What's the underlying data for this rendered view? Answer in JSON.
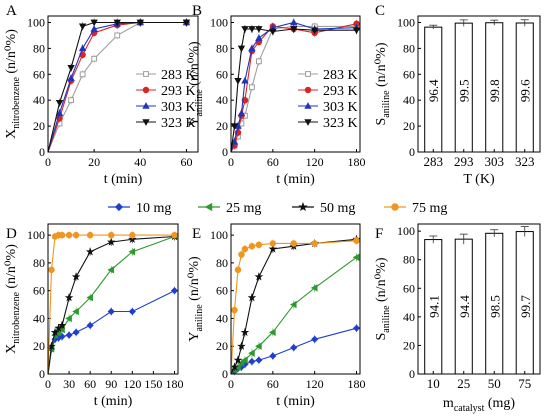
{
  "chart_data": [
    {
      "id": "A",
      "panel_label": "A",
      "type": "line",
      "xlabel": "t (min)",
      "ylabel_main": "X",
      "ylabel_sub": "nitrobenzene",
      "ylabel_tail": " (n/n⁰%)",
      "xlim": [
        0,
        65
      ],
      "ylim": [
        0,
        105
      ],
      "xticks": [
        0,
        20,
        40,
        60
      ],
      "yticks": [
        0,
        20,
        40,
        60,
        80,
        100
      ],
      "legend_position": "inside-right",
      "series": [
        {
          "name": "283 K",
          "color": "#9e9e9e",
          "marker": "square",
          "x": [
            0,
            5,
            10,
            15,
            20,
            30,
            40,
            60
          ],
          "y": [
            0,
            22,
            40,
            60,
            72,
            90,
            100,
            100
          ]
        },
        {
          "name": "293 K",
          "color": "#d62728",
          "marker": "circle",
          "x": [
            0,
            5,
            10,
            15,
            20,
            30,
            40,
            60
          ],
          "y": [
            0,
            26,
            55,
            75,
            92,
            98,
            100,
            100
          ]
        },
        {
          "name": "303 K",
          "color": "#2233bb",
          "marker": "triangle",
          "x": [
            0,
            5,
            10,
            15,
            20,
            30,
            40,
            60
          ],
          "y": [
            0,
            30,
            57,
            80,
            95,
            99,
            100,
            100
          ]
        },
        {
          "name": "323 K",
          "color": "#111111",
          "marker": "triangle-down",
          "x": [
            0,
            5,
            10,
            15,
            20,
            30,
            40,
            60
          ],
          "y": [
            0,
            38,
            65,
            97,
            100,
            100,
            100,
            100
          ]
        }
      ]
    },
    {
      "id": "B",
      "panel_label": "B",
      "type": "line",
      "xlabel": "t (min)",
      "ylabel_main": "Y",
      "ylabel_sub": "aniline",
      "ylabel_tail": " (n/n⁰%)",
      "xlim": [
        0,
        185
      ],
      "ylim": [
        0,
        105
      ],
      "xticks": [
        0,
        60,
        120,
        180
      ],
      "yticks": [
        0,
        20,
        40,
        60,
        80,
        100
      ],
      "legend_position": "inside-right",
      "series": [
        {
          "name": "283 K",
          "color": "#9e9e9e",
          "marker": "square",
          "x": [
            0,
            5,
            10,
            15,
            20,
            30,
            40,
            60,
            90,
            120,
            180
          ],
          "y": [
            0,
            5,
            12,
            22,
            28,
            50,
            70,
            95,
            97,
            97,
            97
          ]
        },
        {
          "name": "293 K",
          "color": "#d62728",
          "marker": "circle",
          "x": [
            0,
            5,
            10,
            15,
            20,
            30,
            40,
            60,
            90,
            120,
            180
          ],
          "y": [
            0,
            5,
            15,
            28,
            40,
            78,
            85,
            97,
            95,
            92,
            99
          ]
        },
        {
          "name": "303 K",
          "color": "#2233bb",
          "marker": "triangle",
          "x": [
            0,
            5,
            10,
            15,
            20,
            30,
            40,
            60,
            90,
            120,
            180
          ],
          "y": [
            0,
            8,
            20,
            30,
            55,
            80,
            88,
            96,
            100,
            95,
            96
          ]
        },
        {
          "name": "323 K",
          "color": "#111111",
          "marker": "triangle-down",
          "x": [
            0,
            5,
            10,
            15,
            20,
            30,
            40,
            60,
            90,
            120,
            180
          ],
          "y": [
            0,
            20,
            55,
            80,
            95,
            95,
            95,
            93,
            95,
            94,
            94
          ]
        }
      ]
    },
    {
      "id": "C",
      "panel_label": "C",
      "type": "bar",
      "xlabel": "T (K)",
      "ylabel_main": "S",
      "ylabel_sub": "aniline",
      "ylabel_tail": " (n/n⁰%)",
      "ylim": [
        0,
        105
      ],
      "yticks": [
        0,
        20,
        40,
        60,
        80,
        100
      ],
      "categories": [
        "283",
        "293",
        "303",
        "323"
      ],
      "values": [
        96.4,
        99.5,
        99.8,
        99.6
      ],
      "errors": [
        1.5,
        2.5,
        2,
        2.5
      ],
      "data_labels": [
        "96.4",
        "99.5",
        "99.8",
        "99.6"
      ]
    },
    {
      "id": "D",
      "panel_label": "D",
      "type": "line",
      "xlabel": "t (min)",
      "ylabel_main": "X",
      "ylabel_sub": "nitrobenzene",
      "ylabel_tail": " (n/n⁰%)",
      "xlim": [
        0,
        185
      ],
      "ylim": [
        0,
        108
      ],
      "xticks": [
        0,
        30,
        60,
        90,
        120,
        150,
        180
      ],
      "yticks": [
        0,
        20,
        40,
        60,
        80,
        100
      ],
      "series": [
        {
          "name": "10 mg",
          "color": "#1f3fd0",
          "marker": "diamond",
          "x": [
            0,
            5,
            10,
            15,
            20,
            30,
            40,
            60,
            90,
            120,
            180
          ],
          "y": [
            0,
            18,
            25,
            26,
            27,
            28,
            30,
            35,
            45,
            45,
            60
          ]
        },
        {
          "name": "25 mg",
          "color": "#2e9a2e",
          "marker": "triangle-left",
          "x": [
            0,
            5,
            10,
            15,
            20,
            30,
            40,
            60,
            90,
            120,
            180
          ],
          "y": [
            0,
            18,
            28,
            30,
            32,
            40,
            45,
            55,
            75,
            88,
            99
          ]
        },
        {
          "name": "50 mg",
          "color": "#111111",
          "marker": "star",
          "x": [
            0,
            5,
            10,
            15,
            20,
            30,
            40,
            60,
            90,
            120,
            180
          ],
          "y": [
            0,
            20,
            30,
            33,
            35,
            55,
            70,
            88,
            95,
            97,
            99
          ]
        },
        {
          "name": "75 mg",
          "color": "#f0961e",
          "marker": "circle",
          "x": [
            0,
            5,
            10,
            15,
            20,
            30,
            40,
            60,
            90,
            120,
            180
          ],
          "y": [
            0,
            75,
            99,
            100,
            100,
            100,
            100,
            100,
            100,
            100,
            100
          ]
        }
      ]
    },
    {
      "id": "E",
      "panel_label": "E",
      "type": "line",
      "xlabel": "t (min)",
      "ylabel_main": "Y",
      "ylabel_sub": "aniline",
      "ylabel_tail": " (n/n⁰%)",
      "xlim": [
        0,
        185
      ],
      "ylim": [
        0,
        108
      ],
      "xticks": [
        0,
        60,
        120,
        180
      ],
      "yticks": [
        0,
        20,
        40,
        60,
        80,
        100
      ],
      "series": [
        {
          "name": "10 mg",
          "color": "#1f3fd0",
          "marker": "diamond",
          "x": [
            0,
            5,
            10,
            15,
            20,
            30,
            40,
            60,
            90,
            120,
            180
          ],
          "y": [
            0,
            2,
            4,
            5,
            7,
            9,
            10,
            13,
            19,
            25,
            33
          ]
        },
        {
          "name": "25 mg",
          "color": "#2e9a2e",
          "marker": "triangle-left",
          "x": [
            0,
            5,
            10,
            15,
            20,
            30,
            40,
            60,
            90,
            120,
            180
          ],
          "y": [
            0,
            3,
            5,
            8,
            10,
            15,
            20,
            30,
            50,
            62,
            84
          ]
        },
        {
          "name": "50 mg",
          "color": "#111111",
          "marker": "star",
          "x": [
            0,
            5,
            10,
            15,
            20,
            30,
            40,
            60,
            90,
            120,
            180
          ],
          "y": [
            0,
            5,
            10,
            20,
            30,
            55,
            70,
            90,
            92,
            94,
            97
          ]
        },
        {
          "name": "75 mg",
          "color": "#f0961e",
          "marker": "circle",
          "x": [
            0,
            5,
            10,
            15,
            20,
            30,
            40,
            60,
            90,
            120,
            180
          ],
          "y": [
            0,
            46,
            75,
            86,
            90,
            92,
            93,
            94,
            94,
            94,
            96
          ]
        }
      ]
    },
    {
      "id": "F",
      "panel_label": "F",
      "type": "bar",
      "xlabel_main": "m",
      "xlabel_sub": "catalyst",
      "xlabel_tail": " (mg)",
      "ylabel_main": "S",
      "ylabel_sub": "aniline",
      "ylabel_tail": " (n/n⁰%)",
      "ylim": [
        0,
        105
      ],
      "yticks": [
        0,
        20,
        40,
        60,
        80,
        100
      ],
      "categories": [
        "10",
        "25",
        "50",
        "75"
      ],
      "values": [
        94.1,
        94.4,
        98.5,
        99.7
      ],
      "errors": [
        2.5,
        3.5,
        2.5,
        3.5
      ],
      "data_labels": [
        "94.1",
        "94.4",
        "98.5",
        "99.7"
      ]
    }
  ],
  "shared_legend": [
    {
      "name": "10 mg",
      "color": "#1f3fd0",
      "marker": "diamond"
    },
    {
      "name": "25 mg",
      "color": "#2e9a2e",
      "marker": "triangle-left"
    },
    {
      "name": "50 mg",
      "color": "#111111",
      "marker": "star"
    },
    {
      "name": "75 mg",
      "color": "#f0961e",
      "marker": "circle"
    }
  ]
}
